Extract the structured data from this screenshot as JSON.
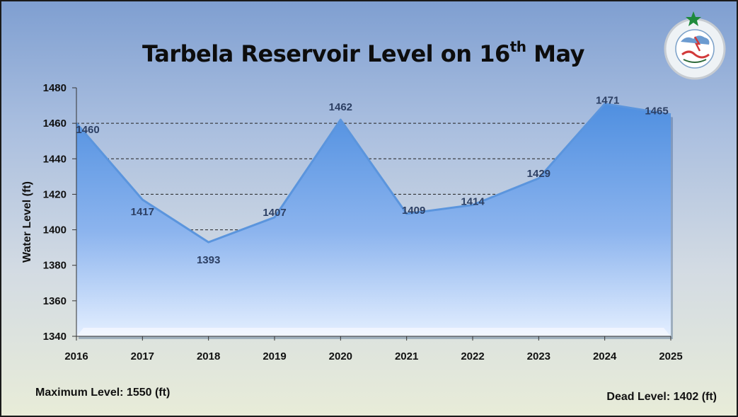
{
  "title_main": "Tarbela Reservoir Level on 16",
  "title_sup": "th",
  "title_tail": " May",
  "logo_text": "PAKISTAN METEOROLOGICAL DEPARTMENT",
  "notes": {
    "max": "Maximum Level: 1550 (ft)",
    "dead": "Dead Level: 1402 (ft)"
  },
  "colors": {
    "area_top": "#4f8fe0",
    "area_bottom": "#e4efff",
    "line": "#5b95dd"
  },
  "chart_data": {
    "type": "area",
    "title": "Tarbela Reservoir Level on 16th May",
    "ylabel": "Water Level (ft)",
    "xlabel": "",
    "categories": [
      "2016",
      "2017",
      "2018",
      "2019",
      "2020",
      "2021",
      "2022",
      "2023",
      "2024",
      "2025"
    ],
    "series": [
      {
        "values": [
          1460,
          1417,
          1393,
          1407,
          1462,
          1409,
          1414,
          1429,
          1471,
          1465
        ]
      }
    ],
    "ylim": [
      1340,
      1480
    ],
    "yticks": [
      1340,
      1360,
      1380,
      1400,
      1420,
      1440,
      1460,
      1480
    ],
    "gridlines": [
      1400,
      1420,
      1440,
      1460
    ],
    "grid_style": "dashed"
  }
}
